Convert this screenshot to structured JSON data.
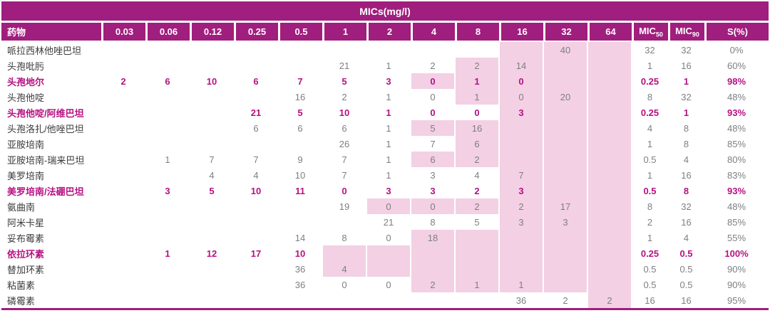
{
  "colors": {
    "header_bg": "#A01E7D",
    "shaded_cell": "#F3D0E4",
    "highlight_text": "#B61181",
    "value_text": "#7D7F82",
    "drug_text": "#3B3B3B"
  },
  "chart_data": {
    "type": "table",
    "title": "MICs(mg/l)",
    "legend_note": "shaded cells = MIC values above susceptibility breakpoint; highlighted rows in magenta",
    "columns": {
      "drug": "药物",
      "concentrations": [
        "0.03",
        "0.06",
        "0.12",
        "0.25",
        "0.5",
        "1",
        "2",
        "4",
        "8",
        "16",
        "32",
        "64"
      ],
      "mic50_base": "MIC",
      "mic50_sub": "50",
      "mic90_base": "MIC",
      "mic90_sub": "90",
      "s": "S(%)"
    },
    "rows": [
      {
        "drug": "哌拉西林他唑巴坦",
        "highlight": false,
        "values": [
          "",
          "",
          "",
          "",
          "",
          "",
          "",
          "",
          "",
          "",
          "40",
          ""
        ],
        "shaded_from": "16",
        "mic50": "32",
        "mic90": "32",
        "s": "0%"
      },
      {
        "drug": "头孢吡肟",
        "highlight": false,
        "values": [
          "",
          "",
          "",
          "",
          "",
          "21",
          "1",
          "2",
          "2",
          "14",
          "",
          ""
        ],
        "shaded_from": "8",
        "mic50": "1",
        "mic90": "16",
        "s": "60%"
      },
      {
        "drug": "头孢地尔",
        "highlight": true,
        "values": [
          "2",
          "6",
          "10",
          "6",
          "7",
          "5",
          "3",
          "0",
          "1",
          "0",
          "",
          ""
        ],
        "shaded_from": "4",
        "mic50": "0.25",
        "mic90": "1",
        "s": "98%"
      },
      {
        "drug": "头孢他啶",
        "highlight": false,
        "values": [
          "",
          "",
          "",
          "",
          "16",
          "2",
          "1",
          "0",
          "1",
          "0",
          "20",
          ""
        ],
        "shaded_from": "8",
        "mic50": "8",
        "mic90": "32",
        "s": "48%"
      },
      {
        "drug": "头孢他啶/阿维巴坦",
        "highlight": true,
        "values": [
          "",
          "",
          "",
          "21",
          "5",
          "10",
          "1",
          "0",
          "0",
          "3",
          "",
          ""
        ],
        "shaded_from": "16",
        "mic50": "0.25",
        "mic90": "1",
        "s": "93%"
      },
      {
        "drug": "头孢洛扎/他唑巴坦",
        "highlight": false,
        "values": [
          "",
          "",
          "",
          "6",
          "6",
          "6",
          "1",
          "5",
          "16",
          "",
          "",
          ""
        ],
        "shaded_from": "4",
        "mic50": "4",
        "mic90": "8",
        "s": "48%"
      },
      {
        "drug": "亚胺培南",
        "highlight": false,
        "values": [
          "",
          "",
          "",
          "",
          "",
          "26",
          "1",
          "7",
          "6",
          "",
          "",
          ""
        ],
        "shaded_from": "8",
        "mic50": "1",
        "mic90": "8",
        "s": "85%"
      },
      {
        "drug": "亚胺培南-瑞来巴坦",
        "highlight": false,
        "values": [
          "",
          "1",
          "7",
          "7",
          "9",
          "7",
          "1",
          "6",
          "2",
          "",
          "",
          ""
        ],
        "shaded_from": "4",
        "mic50": "0.5",
        "mic90": "4",
        "s": "80%"
      },
      {
        "drug": "美罗培南",
        "highlight": false,
        "values": [
          "",
          "",
          "4",
          "4",
          "10",
          "7",
          "1",
          "3",
          "4",
          "7",
          "",
          ""
        ],
        "shaded_from": "16",
        "mic50": "1",
        "mic90": "16",
        "s": "83%"
      },
      {
        "drug": "美罗培南/法硼巴坦",
        "highlight": true,
        "values": [
          "",
          "3",
          "5",
          "10",
          "11",
          "0",
          "3",
          "3",
          "2",
          "3",
          "",
          ""
        ],
        "shaded_from": "16",
        "mic50": "0.5",
        "mic90": "8",
        "s": "93%"
      },
      {
        "drug": "氨曲南",
        "highlight": false,
        "values": [
          "",
          "",
          "",
          "",
          "",
          "19",
          "0",
          "0",
          "2",
          "2",
          "17",
          ""
        ],
        "shaded_from": "2",
        "mic50": "8",
        "mic90": "32",
        "s": "48%"
      },
      {
        "drug": "阿米卡星",
        "highlight": false,
        "values": [
          "",
          "",
          "",
          "",
          "",
          "",
          "21",
          "8",
          "5",
          "3",
          "3",
          ""
        ],
        "shaded_from": "16",
        "mic50": "2",
        "mic90": "16",
        "s": "85%"
      },
      {
        "drug": "妥布霉素",
        "highlight": false,
        "values": [
          "",
          "",
          "",
          "",
          "14",
          "8",
          "0",
          "18",
          "",
          "",
          "",
          ""
        ],
        "shaded_from": "4",
        "mic50": "1",
        "mic90": "4",
        "s": "55%"
      },
      {
        "drug": "依拉环素",
        "highlight": true,
        "values": [
          "",
          "1",
          "12",
          "17",
          "10",
          "",
          "",
          "",
          "",
          "",
          "",
          ""
        ],
        "shaded_from": "1",
        "mic50": "0.25",
        "mic90": "0.5",
        "s": "100%"
      },
      {
        "drug": "替加环素",
        "highlight": false,
        "values": [
          "",
          "",
          "",
          "",
          "36",
          "4",
          "",
          "",
          "",
          "",
          "",
          ""
        ],
        "shaded_from": "1",
        "mic50": "0.5",
        "mic90": "0.5",
        "s": "90%"
      },
      {
        "drug": "粘菌素",
        "highlight": false,
        "values": [
          "",
          "",
          "",
          "",
          "36",
          "0",
          "0",
          "2",
          "1",
          "1",
          "",
          ""
        ],
        "shaded_from": "4",
        "mic50": "0.5",
        "mic90": "0.5",
        "s": "90%"
      },
      {
        "drug": "磷霉素",
        "highlight": false,
        "values": [
          "",
          "",
          "",
          "",
          "",
          "",
          "",
          "",
          "",
          "36",
          "2",
          "2"
        ],
        "shaded_from": "64",
        "mic50": "16",
        "mic90": "16",
        "s": "95%"
      }
    ]
  }
}
